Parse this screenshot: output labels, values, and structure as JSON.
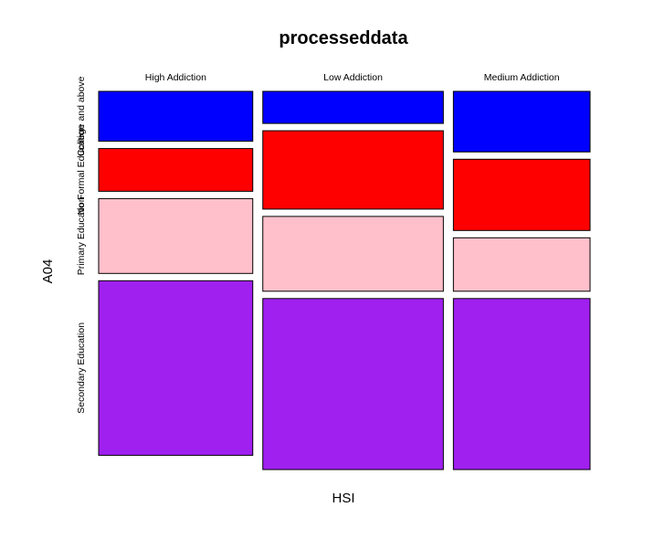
{
  "chart_data": {
    "type": "mosaic",
    "title": "processeddata",
    "xlabel": "HSI",
    "ylabel": "A04",
    "x_categories": [
      "High Addiction",
      "Low Addiction",
      "Medium  Addiction"
    ],
    "x_proportions": [
      0.327,
      0.383,
      0.29
    ],
    "y_categories": [
      "College and above",
      "No Formal Education",
      "Primary Education",
      "Secondary Education"
    ],
    "y_tick_labels": [
      "College and above",
      "No Formal Education",
      "Primary Education",
      "Secondary Education"
    ],
    "colors": [
      "#0000ff",
      "#ff0000",
      "#ffc0cb",
      "#a020f0"
    ],
    "proportions": [
      [
        0.14,
        0.12,
        0.21,
        0.49
      ],
      [
        0.09,
        0.22,
        0.21,
        0.48
      ],
      [
        0.17,
        0.2,
        0.15,
        0.48
      ]
    ]
  }
}
